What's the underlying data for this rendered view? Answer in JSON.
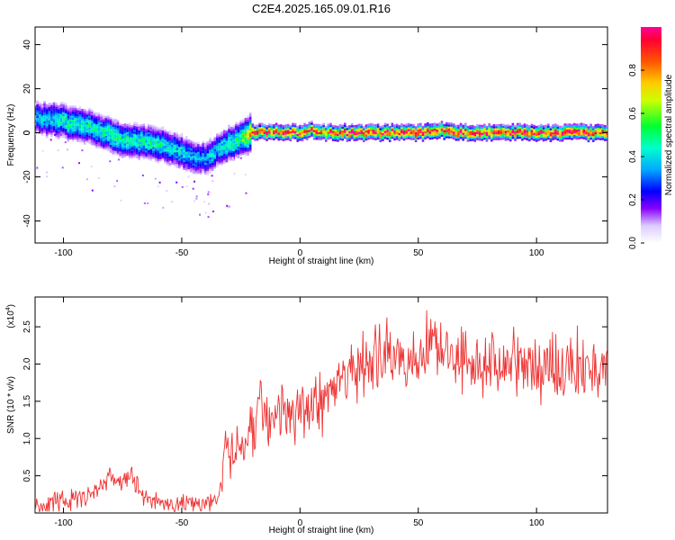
{
  "figure_title": "C2E4.2025.165.09.01.R16",
  "chart_data": [
    {
      "type": "heatmap",
      "xlabel": "Height of straight line (km)",
      "ylabel": "Frequency (Hz)",
      "xlim": [
        -112,
        130
      ],
      "ylim": [
        -50,
        48
      ],
      "xticks": [
        -100,
        -50,
        0,
        50,
        100
      ],
      "yticks": [
        -40,
        -20,
        0,
        20,
        40
      ],
      "colorbar": {
        "label": "Normalized spectral amplitude",
        "range": [
          0,
          1
        ],
        "ticks": [
          "0.0",
          "0.2",
          "0.4",
          "0.6",
          "0.8"
        ],
        "tick_values": [
          0.0,
          0.2,
          0.4,
          0.6,
          0.8
        ],
        "colors": [
          "#ffffff",
          "#8800ff",
          "#0000ff",
          "#00ccff",
          "#00ff66",
          "#ffff00",
          "#ff6600",
          "#ff0066"
        ]
      },
      "ridge": {
        "x": [
          -112,
          -105,
          -100,
          -95,
          -90,
          -85,
          -80,
          -75,
          -70,
          -65,
          -60,
          -55,
          -50,
          -45,
          -40,
          -35,
          -30,
          -25,
          -20,
          -15,
          -10,
          -5,
          0,
          5,
          10,
          20,
          30,
          40,
          50,
          60,
          70,
          80,
          90,
          100,
          110,
          120,
          130
        ],
        "frequency_hz": [
          7,
          6,
          5,
          4,
          3,
          1,
          -1,
          -3,
          -4,
          -4,
          -5,
          -7,
          -9,
          -11,
          -12,
          -8,
          -5,
          -3,
          0,
          0,
          0,
          0,
          0,
          1,
          0,
          0,
          0,
          0,
          0,
          1,
          0,
          0,
          0,
          0,
          0,
          0,
          0
        ],
        "peak_amplitude": [
          0.35,
          0.4,
          0.45,
          0.45,
          0.45,
          0.45,
          0.5,
          0.45,
          0.45,
          0.45,
          0.45,
          0.4,
          0.4,
          0.35,
          0.35,
          0.4,
          0.45,
          0.5,
          0.9,
          0.9,
          0.95,
          0.95,
          0.9,
          0.9,
          0.85,
          0.95,
          0.95,
          0.95,
          0.95,
          0.95,
          0.95,
          0.95,
          0.95,
          0.95,
          0.95,
          0.95,
          0.95
        ]
      }
    },
    {
      "type": "line",
      "xlabel": "Height of straight line (km)",
      "ylabel": "SNR (10 * v/v)",
      "y_multiplier_label": "(x10",
      "y_multiplier_exp": "4",
      "y_multiplier_close": ")",
      "xlim": [
        -112,
        130
      ],
      "ylim": [
        0,
        2.9
      ],
      "xticks": [
        -100,
        -50,
        0,
        50,
        100
      ],
      "yticks": [
        0.5,
        1.0,
        1.5,
        2.0,
        2.5
      ],
      "ytick_labels": [
        "0.5",
        "1.0",
        "1.5",
        "2.0",
        "2.5"
      ],
      "line_color": "#ee3333",
      "series": [
        {
          "x": [
            -112,
            -110,
            -105,
            -100,
            -95,
            -90,
            -87,
            -84,
            -82,
            -80,
            -78,
            -76,
            -74,
            -72,
            -70,
            -68,
            -66,
            -64,
            -62,
            -60,
            -55,
            -50,
            -45,
            -40,
            -37,
            -35,
            -33,
            -32,
            -30,
            -28,
            -26,
            -25,
            -23,
            -22,
            -20,
            -18,
            -17,
            -16,
            -15,
            -13,
            -10,
            -8,
            -5,
            -3,
            0,
            3,
            5,
            8,
            10,
            13,
            15,
            18,
            20,
            25,
            30,
            35,
            40,
            45,
            50,
            55,
            56,
            60,
            65,
            70,
            75,
            80,
            85,
            90,
            95,
            100,
            105,
            110,
            115,
            120,
            125,
            130
          ],
          "y": [
            0.12,
            0.1,
            0.12,
            0.15,
            0.18,
            0.22,
            0.3,
            0.35,
            0.45,
            0.5,
            0.42,
            0.38,
            0.45,
            0.5,
            0.42,
            0.3,
            0.25,
            0.2,
            0.18,
            0.15,
            0.12,
            0.12,
            0.1,
            0.12,
            0.15,
            0.2,
            0.35,
            0.7,
            0.85,
            0.8,
            0.95,
            0.9,
            1.0,
            1.15,
            1.05,
            1.2,
            1.7,
            1.4,
            1.3,
            1.1,
            1.2,
            1.3,
            1.35,
            1.25,
            1.4,
            1.45,
            1.5,
            1.45,
            1.55,
            1.7,
            1.75,
            1.8,
            1.9,
            1.95,
            2.0,
            2.05,
            2.1,
            2.1,
            2.15,
            2.2,
            2.5,
            2.15,
            2.1,
            2.1,
            2.05,
            2.0,
            2.0,
            2.0,
            1.95,
            1.95,
            2.0,
            1.95,
            1.95,
            1.95,
            1.95,
            1.95
          ]
        }
      ]
    }
  ]
}
